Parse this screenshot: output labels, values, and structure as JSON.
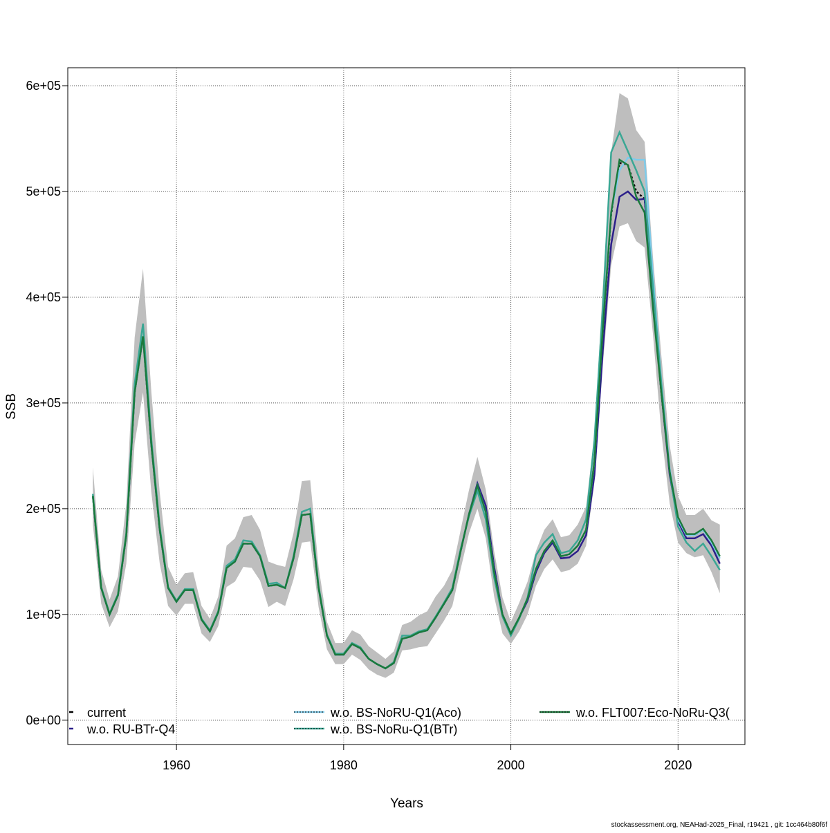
{
  "chart_data": {
    "type": "line",
    "title": "",
    "xlabel": "Years",
    "ylabel": "SSB",
    "xlim": [
      1947,
      2028
    ],
    "ylim": [
      -23000,
      617000
    ],
    "xticks": [
      1960,
      1980,
      2000,
      2020
    ],
    "xtick_labels": [
      "1960",
      "1980",
      "2000",
      "2020"
    ],
    "yticks": [
      0,
      100000,
      200000,
      300000,
      400000,
      500000,
      600000
    ],
    "ytick_labels": [
      "0e+00",
      "1e+05",
      "2e+05",
      "3e+05",
      "4e+05",
      "5e+05",
      "6e+05"
    ],
    "grid": true,
    "legend_placement": "bottom",
    "x": [
      1950,
      1951,
      1952,
      1953,
      1954,
      1955,
      1956,
      1957,
      1958,
      1959,
      1960,
      1961,
      1962,
      1963,
      1964,
      1965,
      1966,
      1967,
      1968,
      1969,
      1970,
      1971,
      1972,
      1973,
      1974,
      1975,
      1976,
      1977,
      1978,
      1979,
      1980,
      1981,
      1982,
      1983,
      1984,
      1985,
      1986,
      1987,
      1988,
      1989,
      1990,
      1991,
      1992,
      1993,
      1994,
      1995,
      1996,
      1997,
      1998,
      1999,
      2000,
      2001,
      2002,
      2003,
      2004,
      2005,
      2006,
      2007,
      2008,
      2009,
      2010,
      2011,
      2012,
      2013,
      2014,
      2015,
      2016,
      2017,
      2018,
      2019,
      2020,
      2021,
      2022,
      2023,
      2024,
      2025
    ],
    "confidence_band": {
      "color": "#bebebe",
      "lower": [
        185000,
        110000,
        88000,
        103000,
        148000,
        262000,
        310000,
        215000,
        148000,
        108000,
        99000,
        110000,
        110000,
        82000,
        74000,
        89000,
        126000,
        131000,
        145000,
        144000,
        132000,
        107000,
        112000,
        108000,
        133000,
        168000,
        169000,
        107000,
        67000,
        53000,
        53000,
        62000,
        57000,
        48000,
        43000,
        40000,
        45000,
        66000,
        67000,
        69000,
        70000,
        82000,
        94000,
        108000,
        143000,
        177000,
        200000,
        172000,
        117000,
        82000,
        72000,
        84000,
        100000,
        127000,
        143000,
        152000,
        140000,
        142000,
        148000,
        165000,
        225000,
        335000,
        430000,
        467000,
        470000,
        453000,
        447000,
        365000,
        272000,
        205000,
        168000,
        158000,
        154000,
        156000,
        140000,
        120000
      ],
      "upper": [
        239000,
        142000,
        114000,
        136000,
        205000,
        362000,
        427000,
        310000,
        215000,
        145000,
        128000,
        139000,
        140000,
        108000,
        96000,
        117000,
        165000,
        172000,
        192000,
        194000,
        180000,
        150000,
        147000,
        145000,
        177000,
        226000,
        227000,
        145000,
        93000,
        73000,
        73000,
        85000,
        81000,
        70000,
        64000,
        58000,
        65000,
        90000,
        93000,
        99000,
        103000,
        117000,
        127000,
        142000,
        180000,
        218000,
        249000,
        218000,
        160000,
        116000,
        93000,
        111000,
        131000,
        160000,
        180000,
        190000,
        173000,
        175000,
        185000,
        202000,
        270000,
        410000,
        537000,
        593000,
        588000,
        558000,
        547000,
        438000,
        345000,
        260000,
        212000,
        194000,
        194000,
        200000,
        189000,
        185000
      ]
    },
    "series": [
      {
        "name": "current",
        "color": "#000000",
        "dash": "dotted",
        "values": [
          212000,
          125000,
          100000,
          118000,
          175000,
          310000,
          363000,
          260000,
          180000,
          125000,
          112000,
          123000,
          123000,
          95000,
          84000,
          102000,
          144000,
          150000,
          167000,
          167000,
          155000,
          127000,
          128000,
          125000,
          153000,
          194000,
          195000,
          125000,
          80000,
          62000,
          62000,
          72000,
          68000,
          58000,
          53000,
          49000,
          54000,
          77000,
          79000,
          83000,
          85000,
          97000,
          110000,
          123000,
          160000,
          195000,
          222000,
          197000,
          140000,
          100000,
          82000,
          97000,
          115000,
          143000,
          160000,
          170000,
          155000,
          157000,
          165000,
          180000,
          245000,
          370000,
          478000,
          527000,
          525000,
          500000,
          493000,
          400000,
          310000,
          235000,
          190000,
          175000,
          175000,
          180000,
          168000,
          153000
        ]
      },
      {
        "name": "w.o. RU-BTr-Q4",
        "color": "#2c1f8a",
        "dash": "solid",
        "values": [
          212000,
          125000,
          100000,
          118000,
          175000,
          310000,
          363000,
          260000,
          180000,
          125000,
          112000,
          123000,
          123000,
          95000,
          84000,
          102000,
          144000,
          150000,
          167000,
          167000,
          155000,
          127000,
          128000,
          125000,
          153000,
          194000,
          195000,
          125000,
          80000,
          62000,
          62000,
          72000,
          68000,
          58000,
          53000,
          49000,
          54000,
          77000,
          79000,
          83000,
          85000,
          97000,
          110000,
          123000,
          160000,
          195000,
          224000,
          203000,
          145000,
          100000,
          82000,
          97000,
          113000,
          140000,
          158000,
          168000,
          153000,
          154000,
          160000,
          175000,
          232000,
          350000,
          450000,
          495000,
          500000,
          492000,
          493000,
          400000,
          310000,
          232000,
          188000,
          172000,
          172000,
          176000,
          165000,
          148000
        ]
      },
      {
        "name": "w.o. BS-NoRU-Q1(Aco)",
        "color": "#7fcbea",
        "dash": "dotted",
        "values": [
          212000,
          125000,
          100000,
          118000,
          175000,
          310000,
          363000,
          260000,
          180000,
          125000,
          112000,
          123000,
          123000,
          95000,
          84000,
          102000,
          144000,
          150000,
          167000,
          167000,
          155000,
          127000,
          128000,
          125000,
          153000,
          194000,
          195000,
          125000,
          80000,
          62000,
          62000,
          72000,
          68000,
          58000,
          53000,
          49000,
          54000,
          77000,
          79000,
          83000,
          85000,
          97000,
          110000,
          123000,
          160000,
          195000,
          222000,
          197000,
          140000,
          100000,
          82000,
          97000,
          115000,
          143000,
          160000,
          170000,
          155000,
          157000,
          165000,
          180000,
          245000,
          372000,
          480000,
          520000,
          532000,
          530000,
          530000,
          420000,
          320000,
          238000,
          190000,
          175000,
          175000,
          180000,
          168000,
          153000
        ]
      },
      {
        "name": "w.o. BS-NoRu-Q1(BTr)",
        "color": "#3aa794",
        "dash": "dotted",
        "values": [
          214000,
          126000,
          101000,
          119000,
          177000,
          318000,
          375000,
          265000,
          183000,
          126000,
          113000,
          124000,
          124000,
          96000,
          85000,
          103000,
          146000,
          152000,
          170000,
          169000,
          156000,
          129000,
          130000,
          125000,
          155000,
          197000,
          200000,
          127000,
          81000,
          63000,
          63000,
          73000,
          69000,
          58000,
          53000,
          49000,
          55000,
          80000,
          80000,
          84000,
          86000,
          98000,
          111000,
          125000,
          162000,
          193000,
          217000,
          190000,
          135000,
          98000,
          80000,
          96000,
          116000,
          156000,
          168000,
          176000,
          158000,
          160000,
          170000,
          190000,
          265000,
          390000,
          537000,
          556000,
          538000,
          520000,
          500000,
          410000,
          318000,
          235000,
          183000,
          168000,
          160000,
          167000,
          155000,
          142000
        ]
      },
      {
        "name": "w.o. FLT007:Eco-NoRu-Q3(",
        "color": "#1a7a3c",
        "dash": "solid",
        "values": [
          212000,
          125000,
          100000,
          118000,
          175000,
          310000,
          363000,
          260000,
          180000,
          125000,
          112000,
          123000,
          123000,
          95000,
          84000,
          102000,
          144000,
          150000,
          167000,
          167000,
          155000,
          127000,
          128000,
          125000,
          153000,
          194000,
          195000,
          125000,
          80000,
          62000,
          62000,
          72000,
          68000,
          58000,
          53000,
          49000,
          54000,
          77000,
          79000,
          83000,
          85000,
          97000,
          110000,
          123000,
          160000,
          195000,
          222000,
          197000,
          140000,
          100000,
          82000,
          97000,
          115000,
          143000,
          160000,
          170000,
          155000,
          157000,
          165000,
          180000,
          245000,
          370000,
          480000,
          530000,
          525000,
          495000,
          480000,
          390000,
          310000,
          235000,
          192000,
          176000,
          176000,
          181000,
          170000,
          155000
        ]
      }
    ]
  },
  "footer": "stockassessment.org, NEAHad-2025_Final, r19421 , git: 1cc464b80f6f"
}
